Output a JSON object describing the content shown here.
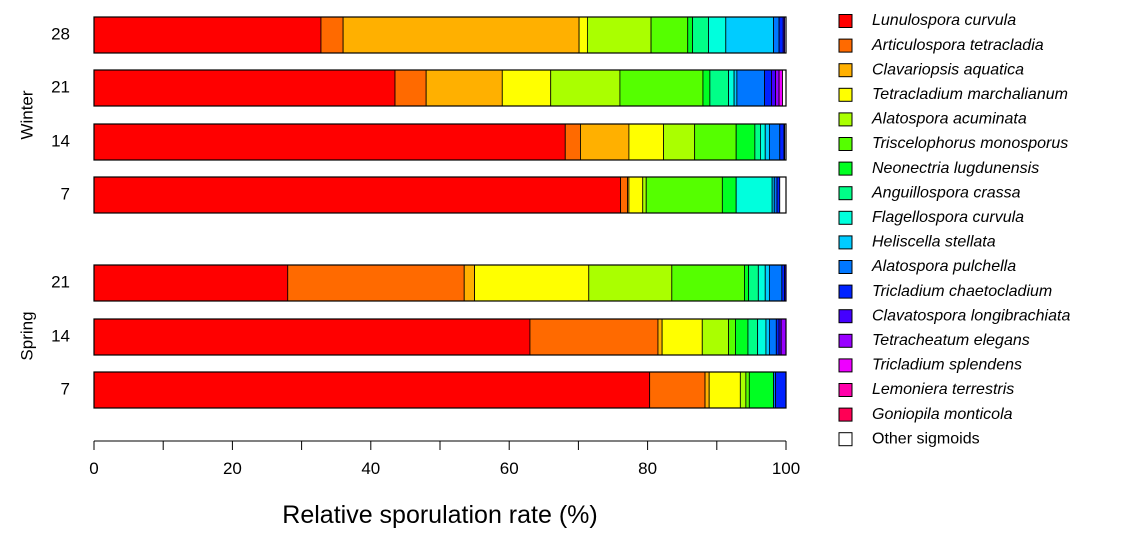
{
  "chart_data": {
    "type": "bar",
    "orientation": "horizontal",
    "stacked": true,
    "xlabel": "Relative sporulation rate (%)",
    "xlim": [
      0,
      100
    ],
    "x_ticks": [
      "0",
      "20",
      "40",
      "60",
      "80",
      "100"
    ],
    "legend_position": "right",
    "groups": [
      {
        "label": "Winter",
        "categories": [
          "28",
          "21",
          "14",
          "7"
        ]
      },
      {
        "label": "Spring",
        "categories": [
          "21",
          "14",
          "7"
        ]
      }
    ],
    "series": [
      {
        "name": "Lunulospora curvula",
        "color": "#ff0000",
        "italic": true,
        "values": {
          "Winter-28": 32.8,
          "Winter-21": 43.5,
          "Winter-14": 68.1,
          "Winter-7": 76.1,
          "Spring-21": 28.0,
          "Spring-14": 63.0,
          "Spring-7": 80.3
        }
      },
      {
        "name": "Articulospora tetracladia",
        "color": "#ff6a00",
        "italic": true,
        "values": {
          "Winter-28": 3.2,
          "Winter-21": 4.5,
          "Winter-14": 2.2,
          "Winter-7": 1.0,
          "Spring-21": 25.5,
          "Spring-14": 18.5,
          "Spring-7": 8.0
        }
      },
      {
        "name": "Clavariopsis aquatica",
        "color": "#ffb000",
        "italic": true,
        "values": {
          "Winter-28": 34.1,
          "Winter-21": 11.0,
          "Winter-14": 7.0,
          "Winter-7": 0.2,
          "Spring-21": 1.5,
          "Spring-14": 0.6,
          "Spring-7": 0.6
        }
      },
      {
        "name": "Tetracladium marchalianum",
        "color": "#ffff00",
        "italic": true,
        "values": {
          "Winter-28": 1.2,
          "Winter-21": 7.0,
          "Winter-14": 5.0,
          "Winter-7": 2.0,
          "Spring-21": 16.5,
          "Spring-14": 5.8,
          "Spring-7": 4.5
        }
      },
      {
        "name": "Alatospora acuminata",
        "color": "#aaff00",
        "italic": true,
        "values": {
          "Winter-28": 9.2,
          "Winter-21": 10.0,
          "Winter-14": 4.5,
          "Winter-7": 0.5,
          "Spring-21": 12.0,
          "Spring-14": 3.8,
          "Spring-7": 0.8
        }
      },
      {
        "name": "Triscelophorus monosporus",
        "color": "#55ff00",
        "italic": true,
        "values": {
          "Winter-28": 5.3,
          "Winter-21": 12.0,
          "Winter-14": 6.0,
          "Winter-7": 11.0,
          "Spring-21": 10.5,
          "Spring-14": 1.0,
          "Spring-7": 0.5
        }
      },
      {
        "name": "Neonectria lugdunensis",
        "color": "#00ff22",
        "italic": true,
        "values": {
          "Winter-28": 0.7,
          "Winter-21": 1.0,
          "Winter-14": 2.7,
          "Winter-7": 2.0,
          "Spring-21": 0.6,
          "Spring-14": 1.8,
          "Spring-7": 3.5
        }
      },
      {
        "name": "Anguillospora crassa",
        "color": "#00ff88",
        "italic": true,
        "values": {
          "Winter-28": 2.3,
          "Winter-21": 2.7,
          "Winter-14": 0.8,
          "Winter-7": 0.0,
          "Spring-21": 1.4,
          "Spring-14": 1.4,
          "Spring-7": 0.0
        }
      },
      {
        "name": "Flagellospora curvula",
        "color": "#00ffdd",
        "italic": true,
        "values": {
          "Winter-28": 2.5,
          "Winter-21": 0.8,
          "Winter-14": 0.7,
          "Winter-7": 5.2,
          "Spring-21": 1.0,
          "Spring-14": 1.2,
          "Spring-7": 0.0
        }
      },
      {
        "name": "Heliscella stellata",
        "color": "#00ccff",
        "italic": true,
        "values": {
          "Winter-28": 6.9,
          "Winter-21": 0.4,
          "Winter-14": 0.6,
          "Winter-7": 0.3,
          "Spring-21": 0.6,
          "Spring-14": 0.5,
          "Spring-7": 0.0
        }
      },
      {
        "name": "Alatospora pulchella",
        "color": "#0077ff",
        "italic": true,
        "values": {
          "Winter-28": 0.8,
          "Winter-21": 4.0,
          "Winter-14": 1.5,
          "Winter-7": 0.4,
          "Spring-21": 1.8,
          "Spring-14": 1.0,
          "Spring-7": 0.3
        }
      },
      {
        "name": "Tricladium chaetocladium",
        "color": "#0022ff",
        "italic": true,
        "values": {
          "Winter-28": 0.6,
          "Winter-21": 1.0,
          "Winter-14": 0.6,
          "Winter-7": 0.4,
          "Spring-21": 0.4,
          "Spring-14": 0.4,
          "Spring-7": 1.5
        }
      },
      {
        "name": "Clavatospora longibrachiata",
        "color": "#4400ff",
        "italic": true,
        "values": {
          "Winter-28": 0.2,
          "Winter-21": 0.6,
          "Winter-14": 0.1,
          "Winter-7": 0.0,
          "Spring-21": 0.2,
          "Spring-14": 0.3,
          "Spring-7": 0.0
        }
      },
      {
        "name": "Tetracheatum elegans",
        "color": "#9900ff",
        "italic": true,
        "values": {
          "Winter-28": 0.0,
          "Winter-21": 0.5,
          "Winter-14": 0.0,
          "Winter-7": 0.0,
          "Spring-21": 0.0,
          "Spring-14": 0.7,
          "Spring-7": 0.0
        }
      },
      {
        "name": "Tricladium splendens",
        "color": "#ee00ff",
        "italic": true,
        "values": {
          "Winter-28": 0.0,
          "Winter-21": 0.5,
          "Winter-14": 0.0,
          "Winter-7": 0.0,
          "Spring-21": 0.0,
          "Spring-14": 0.0,
          "Spring-7": 0.0
        }
      },
      {
        "name": "Lemoniera terrestris",
        "color": "#ff00aa",
        "italic": true,
        "values": {
          "Winter-28": 0.0,
          "Winter-21": 0.0,
          "Winter-14": 0.0,
          "Winter-7": 0.0,
          "Spring-21": 0.0,
          "Spring-14": 0.0,
          "Spring-7": 0.0
        }
      },
      {
        "name": "Goniopila monticola",
        "color": "#ff0055",
        "italic": true,
        "values": {
          "Winter-28": 0.0,
          "Winter-21": 0.0,
          "Winter-14": 0.0,
          "Winter-7": 0.0,
          "Spring-21": 0.0,
          "Spring-14": 0.0,
          "Spring-7": 0.0
        }
      },
      {
        "name": "Other sigmoids",
        "color": "#ffffff",
        "italic": false,
        "values": {
          "Winter-28": 0.0,
          "Winter-21": 0.5,
          "Winter-14": 0.2,
          "Winter-7": 0.9,
          "Spring-21": 0.0,
          "Spring-14": 0.0,
          "Spring-7": 0.0
        }
      }
    ]
  }
}
